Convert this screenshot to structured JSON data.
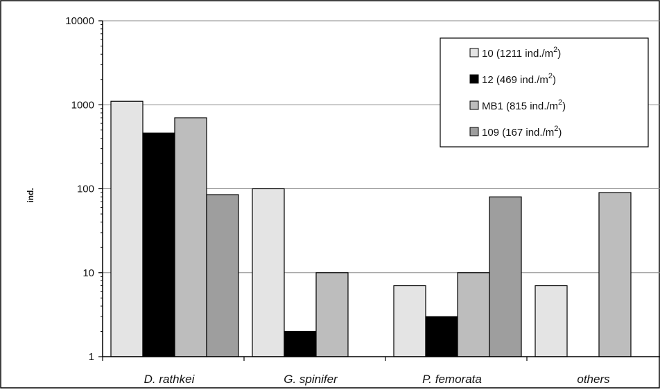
{
  "chart_data": {
    "type": "bar",
    "categories": [
      "D. rathkei",
      "G. spinifer",
      "P. femorata",
      "others"
    ],
    "series": [
      {
        "name": "10 (1211  ind./m",
        "name_sup": "2",
        "name_end": ")",
        "values": [
          1100,
          100,
          7,
          7
        ],
        "color": "#e4e4e4"
      },
      {
        "name": "12 (469 ind./m",
        "name_sup": "2",
        "name_end": ")",
        "values": [
          460,
          2,
          3,
          null
        ],
        "color": "#000000"
      },
      {
        "name": "MB1 (815 ind./m",
        "name_sup": "2",
        "name_end": ")",
        "values": [
          700,
          10,
          10,
          90
        ],
        "color": "#bdbdbd"
      },
      {
        "name": "109 (167 ind./m",
        "name_sup": "2",
        "name_end": ")",
        "values": [
          85,
          null,
          80,
          null
        ],
        "color": "#9e9e9e"
      }
    ],
    "legend_labels": [
      [
        "10",
        "(1211",
        "ind./m"
      ],
      [
        "12",
        "(469",
        "ind./m"
      ],
      [
        "MB1",
        "(815",
        "ind./m"
      ],
      [
        "109",
        "(167",
        "ind./m"
      ]
    ],
    "ylabel": "ind.",
    "ylim": [
      1,
      10000
    ],
    "yscale": "log",
    "yticks": [
      "1",
      "10",
      "100",
      "1000",
      "10000"
    ],
    "grid": true,
    "legend_position": "top-right"
  }
}
